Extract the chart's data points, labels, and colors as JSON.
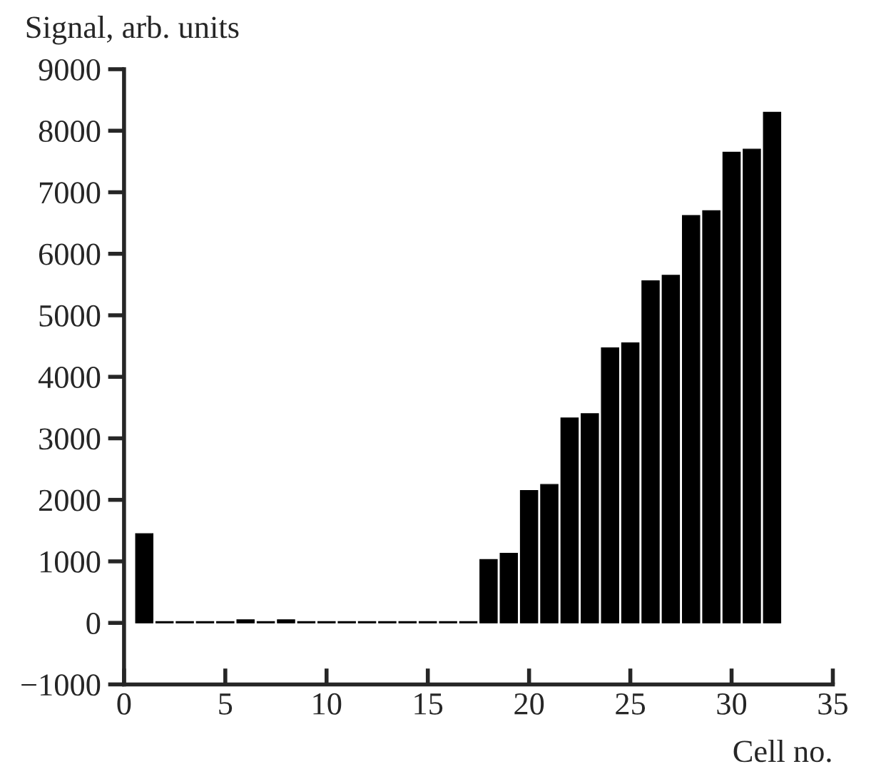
{
  "chart_data": {
    "type": "bar",
    "xlabel": "Cell no.",
    "ylabel": "Signal, arb. units",
    "x": [
      1,
      2,
      3,
      4,
      5,
      6,
      7,
      8,
      9,
      10,
      11,
      12,
      13,
      14,
      15,
      16,
      17,
      18,
      19,
      20,
      21,
      22,
      23,
      24,
      25,
      26,
      27,
      28,
      29,
      30,
      31,
      32
    ],
    "series": [
      {
        "color": "#000000",
        "values": [
          1450,
          20,
          20,
          20,
          20,
          50,
          20,
          50,
          20,
          20,
          20,
          20,
          20,
          20,
          20,
          20,
          20,
          1030,
          1130,
          2150,
          2250,
          3330,
          3400,
          4470,
          4550,
          5560,
          5650,
          6620,
          6700,
          7650,
          7700,
          8300
        ]
      }
    ],
    "xlim": [
      0,
      35
    ],
    "xticks": [
      0,
      5,
      10,
      15,
      20,
      25,
      30,
      35
    ],
    "ylim": [
      -1000,
      9000
    ],
    "yticks": [
      {
        "value": -1000,
        "label": "−1000"
      },
      0,
      1000,
      2000,
      3000,
      4000,
      5000,
      6000,
      7000,
      8000,
      9000
    ],
    "grid": false,
    "legend": false
  }
}
